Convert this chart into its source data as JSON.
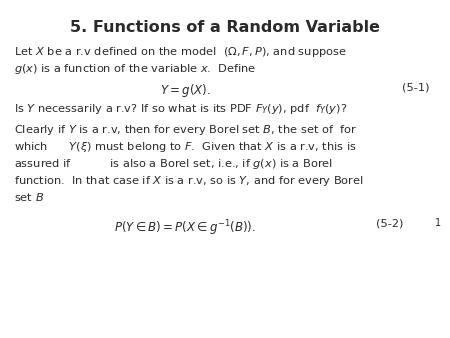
{
  "title": "5. Functions of a Random Variable",
  "background_color": "#ffffff",
  "text_color": "#2a2a2a",
  "figsize": [
    4.5,
    3.38
  ],
  "dpi": 100,
  "font_size_title": 11.5,
  "font_size_body": 8.2,
  "font_size_eq": 8.5,
  "line1": "Let $X$ be a r.v defined on the model  $(\\Omega, F, P)$, and suppose",
  "line2": "$g(x)$ is a function of the variable $x$.  Define",
  "eq1": "$Y = g(X).$",
  "eq1_label": "(5-1)",
  "q_line": "Is $Y$ necessarily a r.v? If so what is its PDF $F_Y(y)$, pdf  $f_Y(y)$?",
  "c1": "Clearly if $Y$ is a r.v, then for every Borel set $B$, the set of  for",
  "c2": "which      $Y(\\xi)$ must belong to $F$.  Given that $X$ is a r.v, this is",
  "c3": "assured if           is also a Borel set, i.e., if $g(x)$ is a Borel",
  "c4": "function.  In that case if $X$ is a r.v, so is $Y$, and for every Borel",
  "c5": "set $B$",
  "eq2": "$P(Y \\in B) = P(X \\in g^{-1}(B)).$",
  "eq2_label": "(5-2)",
  "page": "1"
}
